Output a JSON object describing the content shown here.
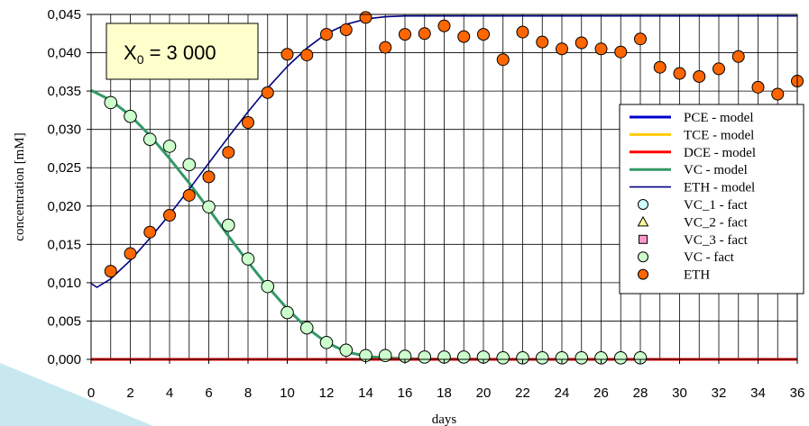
{
  "chart_data": {
    "type": "line",
    "xlabel": "days",
    "ylabel": "concentration [mM]",
    "xlim": [
      0,
      36
    ],
    "ylim": [
      0,
      0.045
    ],
    "x_ticks": [
      "0",
      "2",
      "4",
      "6",
      "8",
      "10",
      "12",
      "14",
      "16",
      "18",
      "20",
      "22",
      "24",
      "26",
      "28",
      "30",
      "32",
      "34",
      "36"
    ],
    "y_ticks": [
      "0,000",
      "0,005",
      "0,010",
      "0,015",
      "0,020",
      "0,025",
      "0,030",
      "0,035",
      "0,040",
      "0,045"
    ],
    "grid": true,
    "legend_position": "right",
    "annotation": {
      "base": "X",
      "sub": "0",
      "rest": " = 3 000"
    },
    "series": [
      {
        "name": "PCE - model",
        "kind": "line",
        "color": "#0000cc",
        "x": [
          0,
          36
        ],
        "y": [
          0,
          0
        ]
      },
      {
        "name": "TCE - model",
        "kind": "line",
        "color": "#ffcc00",
        "x": [
          0,
          36
        ],
        "y": [
          0,
          0
        ]
      },
      {
        "name": "DCE - model",
        "kind": "line",
        "color": "#ff0000",
        "x": [
          0,
          36
        ],
        "y": [
          0,
          0
        ]
      },
      {
        "name": "VC - model",
        "kind": "line",
        "color": "#339966",
        "x": [
          0,
          1,
          2,
          3,
          4,
          5,
          6,
          7,
          8,
          9,
          10,
          11,
          12,
          13,
          14,
          15,
          16,
          17,
          18,
          20,
          22,
          24,
          26,
          28,
          30,
          32,
          34,
          36
        ],
        "y": [
          0.0351,
          0.0338,
          0.0318,
          0.0292,
          0.0262,
          0.023,
          0.0196,
          0.0161,
          0.0127,
          0.0095,
          0.0066,
          0.0041,
          0.0022,
          0.001,
          0.0004,
          0.0002,
          0.0001,
          5e-05,
          3e-05,
          1e-05,
          0,
          0,
          0,
          0,
          0,
          0,
          0,
          0
        ]
      },
      {
        "name": "ETH - model",
        "kind": "line",
        "color": "#000080",
        "x": [
          0,
          0.3,
          1,
          2,
          3,
          4,
          5,
          6,
          7,
          8,
          9,
          10,
          11,
          12,
          13,
          14,
          15,
          16,
          18,
          20,
          24,
          28,
          32,
          36
        ],
        "y": [
          0.0099,
          0.0094,
          0.0105,
          0.0129,
          0.0158,
          0.0189,
          0.0222,
          0.0256,
          0.029,
          0.0323,
          0.0354,
          0.0382,
          0.0406,
          0.0425,
          0.0437,
          0.0444,
          0.0447,
          0.0448,
          0.0448,
          0.0448,
          0.0448,
          0.0448,
          0.0448,
          0.0448
        ]
      },
      {
        "name": "VC_1 - fact",
        "kind": "marker",
        "marker": "circle",
        "color": "#ccffff",
        "x": [],
        "y": []
      },
      {
        "name": "VC_2 - fact",
        "kind": "marker",
        "marker": "triangle",
        "color": "#ffff99",
        "x": [],
        "y": []
      },
      {
        "name": "VC_3 - fact",
        "kind": "marker",
        "marker": "square",
        "color": "#ff99cc",
        "x": [],
        "y": []
      },
      {
        "name": "VC - fact",
        "kind": "marker",
        "marker": "circle",
        "color": "#ccffcc",
        "x": [
          1,
          2,
          3,
          4,
          5,
          6,
          7,
          8,
          9,
          10,
          11,
          12,
          13,
          14,
          15,
          16,
          17,
          18,
          19,
          20,
          21,
          22,
          23,
          24,
          25,
          26,
          27,
          28
        ],
        "y": [
          0.0335,
          0.0317,
          0.0287,
          0.0278,
          0.0254,
          0.0199,
          0.0175,
          0.0131,
          0.0095,
          0.0061,
          0.0041,
          0.0022,
          0.0012,
          0.0005,
          0.0005,
          0.0004,
          0.0003,
          0.0003,
          0.0003,
          0.0003,
          0.0002,
          0.0002,
          0.0002,
          0.0002,
          0.0002,
          0.0002,
          0.0002,
          0.0002
        ]
      },
      {
        "name": "ETH",
        "kind": "marker",
        "marker": "circle",
        "color": "#ff6600",
        "x": [
          1,
          2,
          3,
          4,
          5,
          6,
          7,
          8,
          9,
          10,
          11,
          12,
          13,
          14,
          15,
          16,
          17,
          18,
          19,
          20,
          21,
          22,
          23,
          24,
          25,
          26,
          27,
          28,
          29,
          30,
          31,
          32,
          33,
          34,
          35,
          36
        ],
        "y": [
          0.0115,
          0.0138,
          0.0166,
          0.0188,
          0.0214,
          0.0238,
          0.027,
          0.0309,
          0.0348,
          0.0398,
          0.0397,
          0.0424,
          0.043,
          0.0446,
          0.0407,
          0.0424,
          0.0425,
          0.0435,
          0.0421,
          0.0424,
          0.0391,
          0.0427,
          0.0414,
          0.0405,
          0.0413,
          0.0405,
          0.0401,
          0.0418,
          0.0381,
          0.0373,
          0.0369,
          0.0379,
          0.0395,
          0.0355,
          0.0346,
          0.0363
        ]
      }
    ]
  }
}
